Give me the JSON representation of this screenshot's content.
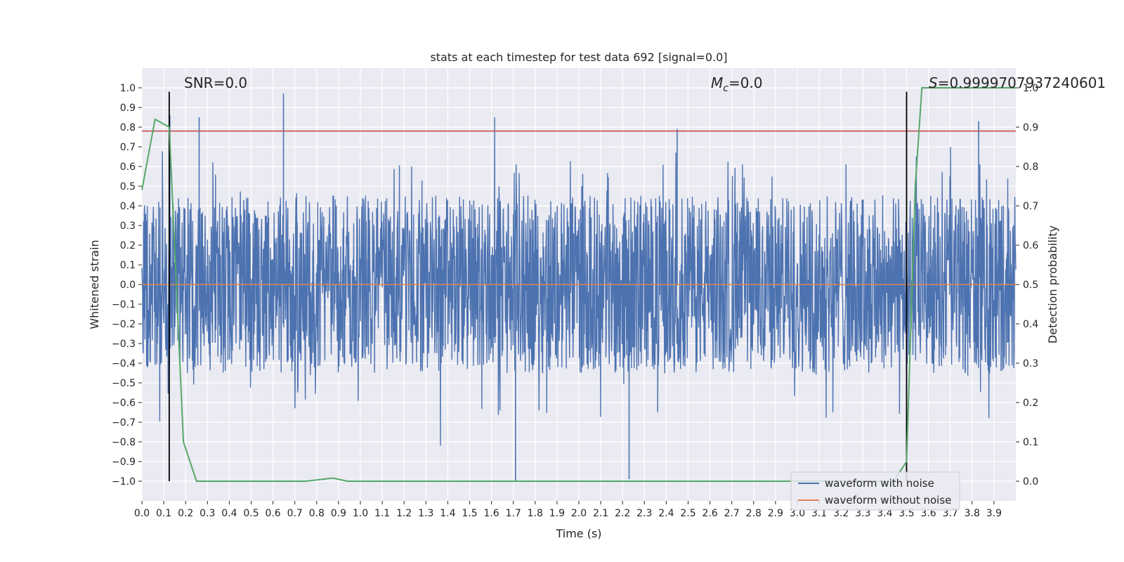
{
  "chart_data": {
    "type": "line",
    "title": "stats at each timestep for test data 692 [signal=0.0]",
    "xlabel": "Time (s)",
    "ylabel": "Whitened strain",
    "y2label": "Detection probability",
    "xlim": [
      0.0,
      4.0
    ],
    "ylim": [
      -1.1,
      1.1
    ],
    "y2lim": [
      -0.05,
      1.05
    ],
    "xticks": [
      "0.0",
      "0.1",
      "0.2",
      "0.3",
      "0.4",
      "0.5",
      "0.6",
      "0.7",
      "0.8",
      "0.9",
      "1.0",
      "1.1",
      "1.2",
      "1.3",
      "1.4",
      "1.5",
      "1.6",
      "1.7",
      "1.8",
      "1.9",
      "2.0",
      "2.1",
      "2.2",
      "2.3",
      "2.4",
      "2.5",
      "2.6",
      "2.7",
      "2.8",
      "2.9",
      "3.0",
      "3.1",
      "3.2",
      "3.3",
      "3.4",
      "3.5",
      "3.6",
      "3.7",
      "3.8",
      "3.9"
    ],
    "yticks": [
      "1.0",
      "0.9",
      "0.8",
      "0.7",
      "0.6",
      "0.5",
      "0.4",
      "0.3",
      "0.2",
      "0.1",
      "0.0",
      "−0.1",
      "−0.2",
      "−0.3",
      "−0.4",
      "−0.5",
      "−0.6",
      "−0.7",
      "−0.8",
      "−0.9",
      "−1.0"
    ],
    "y2ticks": [
      "1.0",
      "0.9",
      "0.8",
      "0.7",
      "0.6",
      "0.5",
      "0.4",
      "0.3",
      "0.2",
      "0.1",
      "0.0"
    ],
    "grid": true,
    "legend_position": "lower-right",
    "series": [
      {
        "name": "waveform with noise",
        "color": "#4c72b0",
        "kind": "noise",
        "typical_range": [
          -0.45,
          0.45
        ],
        "peak_max": 0.97,
        "peak_min": -1.0
      },
      {
        "name": "waveform without noise",
        "color": "#dd8452",
        "kind": "flat",
        "value": 0.0
      },
      {
        "color": "#55a868",
        "axis": "y2",
        "x": [
          0.0,
          0.06,
          0.125,
          0.19,
          0.25,
          0.31,
          0.5,
          0.75,
          0.875,
          0.94,
          1.0,
          1.5,
          2.0,
          2.5,
          2.8,
          3.0,
          3.3,
          3.44,
          3.5,
          3.54,
          3.57,
          4.0
        ],
        "values": [
          0.74,
          0.92,
          0.9,
          0.1,
          0.0,
          0.0,
          0.0,
          0.0,
          0.008,
          0.0,
          0.0,
          0.0,
          0.0,
          0.0,
          0.0,
          0.0,
          0.0,
          0.0,
          0.05,
          0.75,
          1.0,
          1.0
        ]
      }
    ],
    "hlines": [
      {
        "y": 0.78,
        "color": "#c44e52"
      }
    ],
    "vlines": [
      {
        "x": 0.125,
        "color": "#000000",
        "range": [
          -1.0,
          0.98
        ]
      },
      {
        "x": 3.5,
        "color": "#000000",
        "range": [
          -1.0,
          0.98
        ]
      }
    ],
    "annotations": [
      {
        "prefix": "SNR",
        "sub": "",
        "value": "=0.0"
      },
      {
        "prefix": "M",
        "sub": "c",
        "value": "=0.0"
      },
      {
        "prefix": "S",
        "sub": "",
        "value": "=0.9999707937240601"
      }
    ]
  }
}
